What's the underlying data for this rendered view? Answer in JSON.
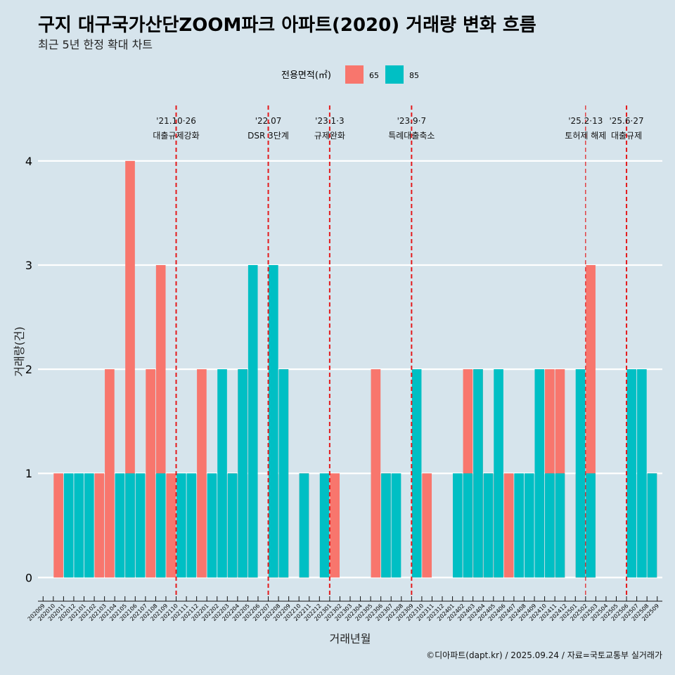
{
  "chart_data": {
    "type": "bar",
    "title": "구지 대구국가산단ZOOM파크 아파트(2020) 거래량 변화 흐름",
    "subtitle": "최근 5년 한정 확대 차트",
    "xlabel": "거래년월",
    "ylabel": "거래량(건)",
    "ylim": [
      -0.18,
      4.6
    ],
    "yticks": [
      0,
      1,
      2,
      3,
      4
    ],
    "grid": "horizontal",
    "legend": {
      "title": "전용면적(㎡)",
      "placement": "top",
      "entries": [
        {
          "name": "65",
          "color": "#f8766d"
        },
        {
          "name": "85",
          "color": "#00bfc4"
        }
      ]
    },
    "categories": [
      "202009",
      "202010",
      "202011",
      "202012",
      "202101",
      "202102",
      "202103",
      "202104",
      "202105",
      "202106",
      "202107",
      "202108",
      "202109",
      "202110",
      "202111",
      "202112",
      "202201",
      "202202",
      "202203",
      "202204",
      "202205",
      "202206",
      "202207",
      "202208",
      "202209",
      "202210",
      "202211",
      "202212",
      "202301",
      "202302",
      "202303",
      "202304",
      "202305",
      "202306",
      "202307",
      "202308",
      "202309",
      "202310",
      "202311",
      "202312",
      "202401",
      "202402",
      "202403",
      "202404",
      "202405",
      "202406",
      "202407",
      "202408",
      "202409",
      "202410",
      "202411",
      "202412",
      "202501",
      "202502",
      "202503",
      "202504",
      "202505",
      "202506",
      "202507",
      "202508",
      "202509"
    ],
    "series": [
      {
        "name": "65",
        "color": "#f8766d",
        "values": [
          0,
          0,
          1,
          0,
          0,
          0,
          1,
          2,
          0,
          4,
          0,
          2,
          3,
          1,
          0,
          0,
          2,
          0,
          0,
          1,
          2,
          2,
          0,
          1,
          2,
          0,
          1,
          0,
          0,
          1,
          0,
          0,
          0,
          2,
          1,
          0,
          0,
          0,
          1,
          0,
          0,
          0,
          2,
          2,
          1,
          1,
          1,
          0,
          0,
          0,
          2,
          2,
          0,
          1,
          3,
          0,
          0,
          0,
          0,
          0,
          1
        ]
      },
      {
        "name": "85",
        "color": "#00bfc4",
        "values": [
          0,
          0,
          1,
          1,
          1,
          0,
          0,
          1,
          1,
          1,
          0,
          1,
          0,
          1,
          1,
          0,
          1,
          2,
          1,
          2,
          3,
          0,
          3,
          2,
          0,
          1,
          0,
          1,
          0,
          0,
          0,
          0,
          0,
          1,
          1,
          0,
          2,
          0,
          0,
          0,
          1,
          1,
          2,
          1,
          2,
          0,
          1,
          1,
          2,
          1,
          1,
          0,
          2,
          1,
          0,
          0,
          0,
          2,
          2,
          1,
          0
        ]
      }
    ],
    "events": [
      {
        "date": "'21.10·26",
        "label": "대출규제강화",
        "category": "202110",
        "style": "thick"
      },
      {
        "date": "'22.07",
        "label": "DSR 3단계",
        "category": "202207",
        "style": "thick"
      },
      {
        "date": "'23.1·3",
        "label": "규제완화",
        "category": "202301",
        "style": "thick"
      },
      {
        "date": "'23.9·7",
        "label": "특례대출축소",
        "category": "202309",
        "style": "thick"
      },
      {
        "date": "'25.2·13",
        "label": "토허제 해제",
        "category": "202502",
        "style": "thin"
      },
      {
        "date": "'25.6·27",
        "label": "대출규제",
        "category": "202506",
        "style": "thick"
      }
    ],
    "caption": "©디아파트(dapt.kr) / 2025.09.24 / 자료=국토교통부 실거래가"
  }
}
